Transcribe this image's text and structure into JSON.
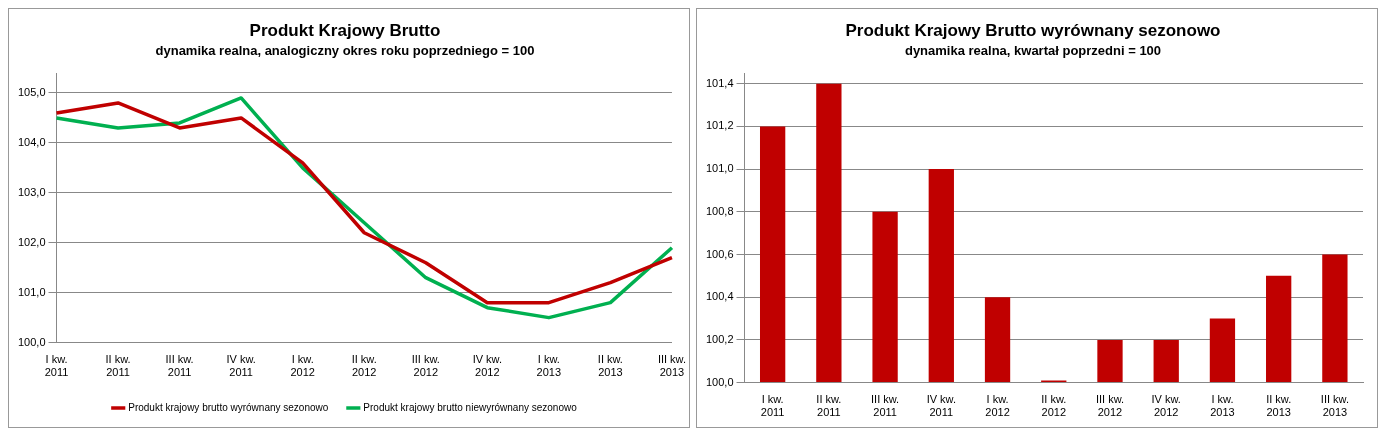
{
  "chart_data": [
    {
      "type": "line",
      "title": "Produkt Krajowy Brutto",
      "subtitle": "dynamika realna, analogiczny okres roku poprzedniego = 100",
      "categories": [
        "I kw. 2011",
        "II kw. 2011",
        "III kw. 2011",
        "IV kw. 2011",
        "I kw. 2012",
        "II kw. 2012",
        "III kw. 2012",
        "IV kw. 2012",
        "I kw. 2013",
        "II kw. 2013",
        "III kw. 2013"
      ],
      "series": [
        {
          "name": "Produkt krajowy brutto wyrównany sezonowo",
          "color": "#c00000",
          "values": [
            104.6,
            104.8,
            104.3,
            104.5,
            103.6,
            102.2,
            101.6,
            100.8,
            100.8,
            101.2,
            101.7
          ]
        },
        {
          "name": "Produkt krajowy brutto niewyrównany sezonowo",
          "color": "#00b050",
          "values": [
            104.5,
            104.3,
            104.4,
            104.9,
            103.5,
            102.4,
            101.3,
            100.7,
            100.5,
            100.8,
            101.9
          ]
        }
      ],
      "ylim": [
        100,
        105.4
      ],
      "yticks": [
        {
          "value": 100,
          "label": "100,0"
        },
        {
          "value": 101,
          "label": "101,0"
        },
        {
          "value": 102,
          "label": "102,0"
        },
        {
          "value": 103,
          "label": "103,0"
        },
        {
          "value": 104,
          "label": "104,0"
        },
        {
          "value": 105,
          "label": "105,0"
        }
      ],
      "grid": "y",
      "legend": "bottom",
      "marker": "none",
      "line_style": "solid"
    },
    {
      "type": "bar",
      "title": "Produkt Krajowy Brutto wyrównany sezonowo",
      "subtitle": "dynamika realna, kwartał poprzedni = 100",
      "categories": [
        "I kw. 2011",
        "II kw. 2011",
        "III kw. 2011",
        "IV kw. 2011",
        "I kw. 2012",
        "II kw. 2012",
        "III kw. 2012",
        "IV kw. 2012",
        "I kw. 2013",
        "II kw. 2013",
        "III kw. 2013"
      ],
      "values": [
        101.2,
        101.4,
        100.8,
        101.0,
        100.4,
        100.0,
        100.2,
        100.2,
        100.3,
        100.5,
        100.6
      ],
      "color": "#c00000",
      "ylim": [
        100,
        101.45
      ],
      "yticks": [
        {
          "value": 100,
          "label": "100,0"
        },
        {
          "value": 100.2,
          "label": "100,2"
        },
        {
          "value": 100.4,
          "label": "100,4"
        },
        {
          "value": 100.6,
          "label": "100,6"
        },
        {
          "value": 100.8,
          "label": "100,8"
        },
        {
          "value": 101,
          "label": "101,0"
        },
        {
          "value": 101.2,
          "label": "101,2"
        },
        {
          "value": 101.4,
          "label": "101,4"
        }
      ],
      "grid": "y",
      "legend": false
    }
  ]
}
